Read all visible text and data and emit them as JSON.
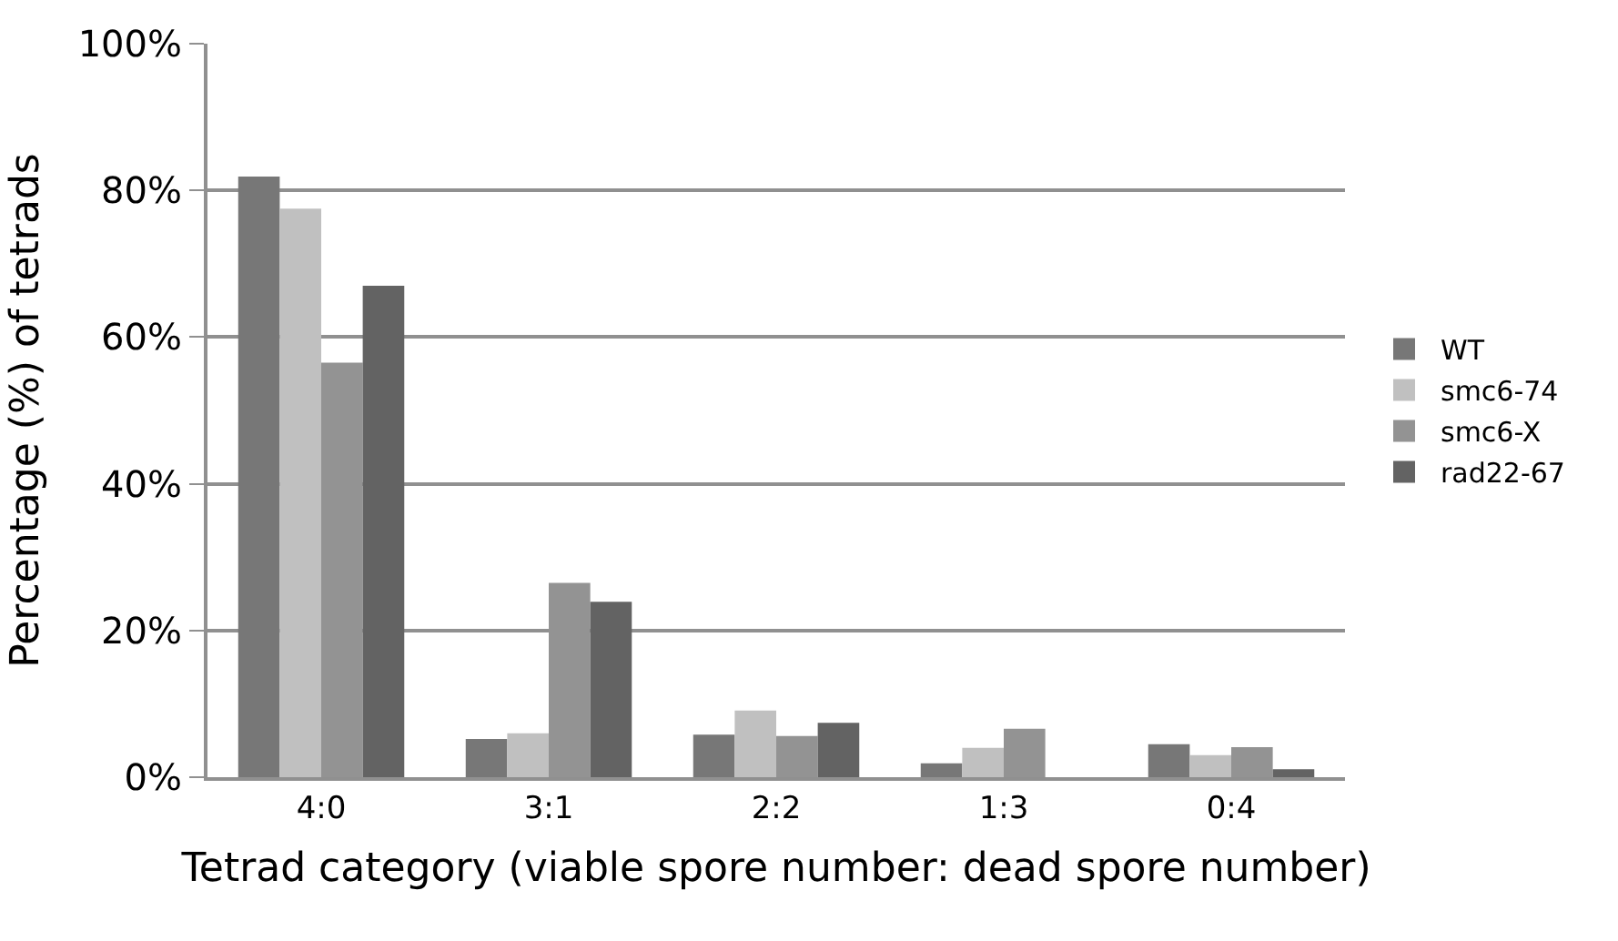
{
  "chart_data": {
    "type": "bar",
    "xlabel": "Tetrad category (viable spore number: dead spore number)",
    "ylabel": "Percentage (%) of tetrads",
    "categories": [
      "4:0",
      "3:1",
      "2:2",
      "1:3",
      "0:4"
    ],
    "series": [
      {
        "name": "WT",
        "color": "#777777",
        "values": [
          81.9,
          5.2,
          5.8,
          1.9,
          4.5
        ]
      },
      {
        "name": "smc6-74",
        "color": "#c0c0c0",
        "values": [
          77.5,
          6.0,
          9.1,
          4.0,
          3.0
        ]
      },
      {
        "name": "smc6-X",
        "color": "#939393",
        "values": [
          56.5,
          26.5,
          5.6,
          6.6,
          4.1
        ]
      },
      {
        "name": "rad22-67",
        "color": "#636363",
        "values": [
          67.0,
          23.9,
          7.4,
          0,
          1.1
        ]
      }
    ],
    "ylim": [
      0,
      100
    ],
    "yticks": [
      {
        "value": 0,
        "label": "0%"
      },
      {
        "value": 20,
        "label": "20%"
      },
      {
        "value": 40,
        "label": "40%"
      },
      {
        "value": 60,
        "label": "60%"
      },
      {
        "value": 80,
        "label": "80%"
      },
      {
        "value": 100,
        "label": "100%"
      }
    ],
    "grid": "y",
    "legend": "right"
  }
}
